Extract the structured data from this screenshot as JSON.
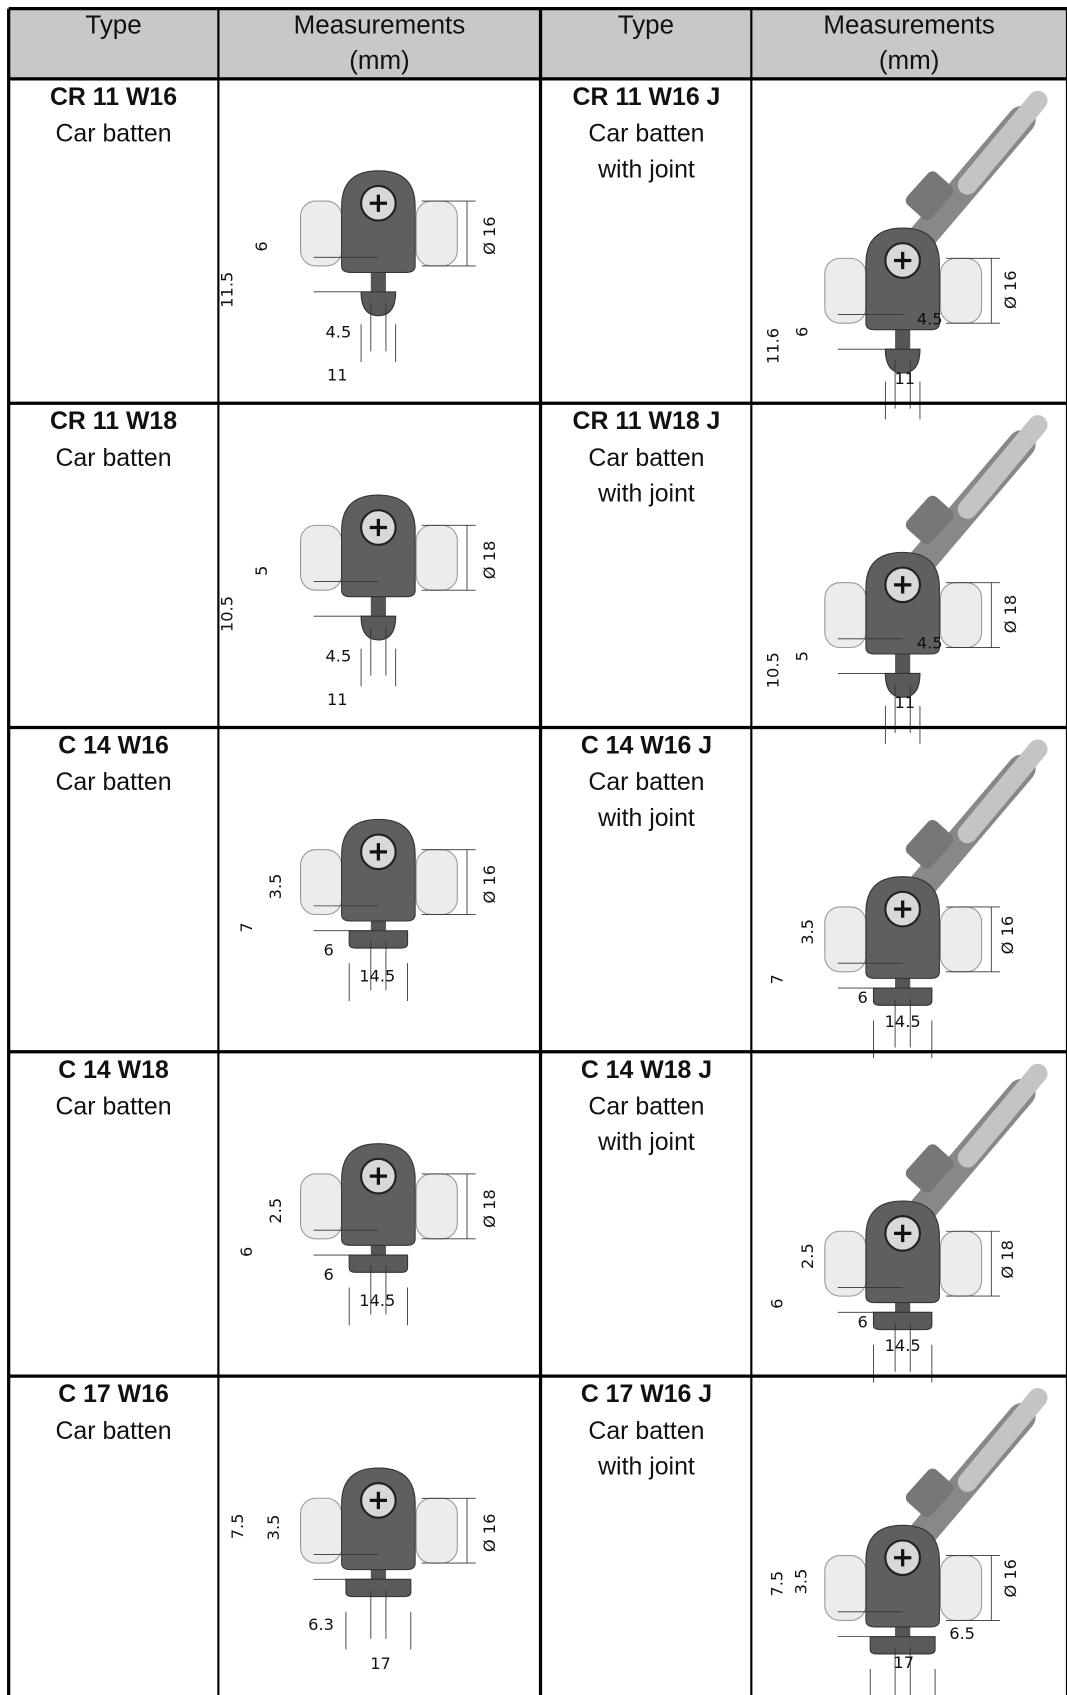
{
  "header": [
    [
      "Type"
    ],
    [
      "Measurements",
      "(mm)"
    ],
    [
      "Type"
    ],
    [
      "Measurements",
      "(mm)"
    ]
  ],
  "rows": [
    {
      "left": {
        "code": "CR 11 W16",
        "desc": [
          "Car batten"
        ],
        "dims": [
          "11.5",
          "6",
          "4.5",
          "11",
          "Ø 16"
        ]
      },
      "right": {
        "code": "CR 11 W16 J",
        "desc": [
          "Car batten",
          "with joint"
        ],
        "dims": [
          "11.6",
          "6",
          "4.5",
          "11",
          "Ø 16"
        ]
      }
    },
    {
      "left": {
        "code": "CR 11 W18",
        "desc": [
          "Car batten"
        ],
        "dims": [
          "10.5",
          "5",
          "4.5",
          "11",
          "Ø 18"
        ]
      },
      "right": {
        "code": "CR 11 W18 J",
        "desc": [
          "Car batten",
          "with joint"
        ],
        "dims": [
          "10.5",
          "5",
          "4.5",
          "11",
          "Ø 18"
        ]
      }
    },
    {
      "left": {
        "code": "C 14 W16",
        "desc": [
          "Car batten"
        ],
        "dims": [
          "3.5",
          "7",
          "6",
          "14.5",
          "Ø 16"
        ]
      },
      "right": {
        "code": "C 14 W16 J",
        "desc": [
          "Car batten",
          "with joint"
        ],
        "dims": [
          "3.5",
          "7",
          "6",
          "14.5",
          "Ø 16"
        ]
      }
    },
    {
      "left": {
        "code": "C 14 W18",
        "desc": [
          "Car batten"
        ],
        "dims": [
          "2.5",
          "6",
          "6",
          "14.5",
          "Ø 18"
        ]
      },
      "right": {
        "code": "C 14 W18 J",
        "desc": [
          "Car batten",
          "with joint"
        ],
        "dims": [
          "2.5",
          "6",
          "6",
          "14.5",
          "Ø 18"
        ]
      }
    },
    {
      "left": {
        "code": "C 17 W16",
        "desc": [
          "Car batten"
        ],
        "dims": [
          "7.5",
          "3.5",
          "6.3",
          "17",
          "Ø 16"
        ]
      },
      "right": {
        "code": "C 17 W16 J",
        "desc": [
          "Car batten",
          "with joint"
        ],
        "dims": [
          "7.5",
          "3.5",
          "6.5",
          "17",
          "Ø 16"
        ]
      }
    }
  ]
}
